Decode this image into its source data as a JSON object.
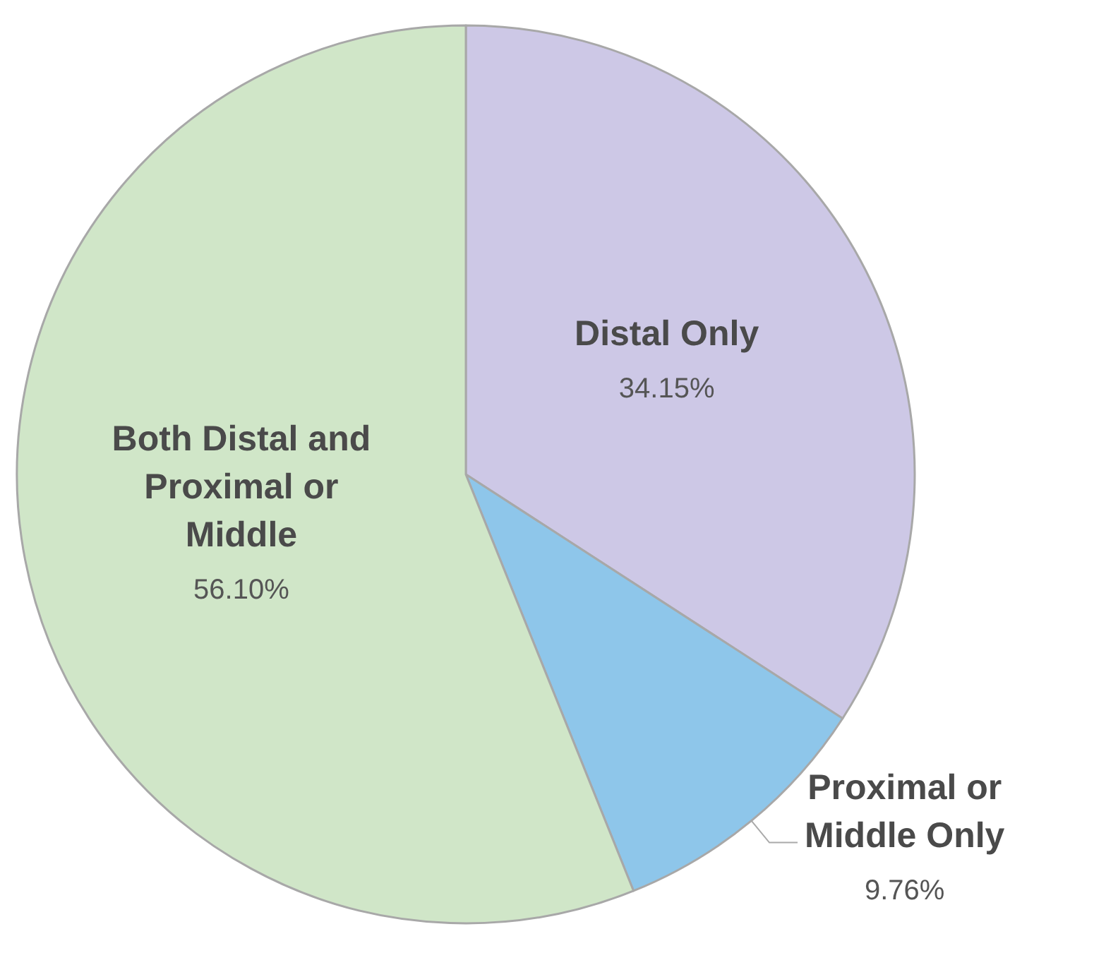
{
  "chart_data": {
    "type": "pie",
    "categories": [
      "Distal Only",
      "Proximal or Middle Only",
      "Both Distal and Proximal or Middle"
    ],
    "values": [
      34.15,
      9.76,
      56.1
    ],
    "colors": [
      "#cdc8e6",
      "#8ec6ea",
      "#d0e6c8"
    ],
    "value_labels": [
      "34.15%",
      "9.76%",
      "56.10%"
    ],
    "legend": false
  }
}
